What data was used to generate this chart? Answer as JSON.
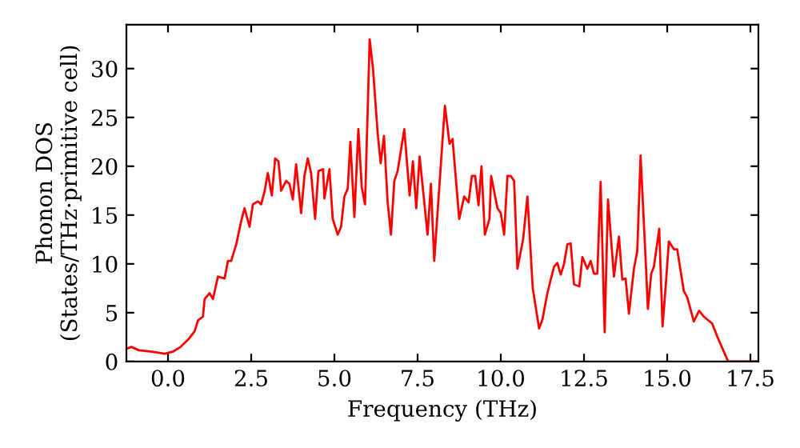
{
  "chart_data": {
    "type": "line",
    "xlabel": "Frequency (THz)",
    "ylabel": "Phonon DOS\n(States/THz·primitive cell)",
    "xlim": [
      -1.25,
      17.74
    ],
    "ylim": [
      0,
      34.5
    ],
    "xticks": [
      {
        "value": 0,
        "label": "0.0"
      },
      2.5,
      {
        "value": 5,
        "label": "5.0"
      },
      7.5,
      {
        "value": 10,
        "label": "10.0"
      },
      12.5,
      {
        "value": 15,
        "label": "15.0"
      },
      17.5
    ],
    "yticks": [
      0,
      5,
      10,
      15,
      20,
      25,
      30
    ],
    "grid": false,
    "legend": false,
    "marker": "none",
    "line_style": "solid",
    "series": [
      {
        "color": "#ff0000",
        "x": [
          -1.25,
          -1.1,
          -0.87,
          -0.48,
          -0.1,
          0.14,
          0.38,
          0.62,
          0.8,
          0.9,
          1.05,
          1.1,
          1.25,
          1.35,
          1.5,
          1.7,
          1.8,
          1.9,
          2.05,
          2.2,
          2.3,
          2.45,
          2.55,
          2.7,
          2.8,
          2.9,
          3.0,
          3.12,
          3.22,
          3.32,
          3.4,
          3.55,
          3.65,
          3.75,
          3.85,
          4.0,
          4.1,
          4.2,
          4.3,
          4.42,
          4.52,
          4.66,
          4.7,
          4.85,
          4.95,
          5.1,
          5.2,
          5.3,
          5.4,
          5.48,
          5.6,
          5.72,
          5.82,
          5.92,
          6.06,
          6.16,
          6.3,
          6.39,
          6.49,
          6.6,
          6.7,
          6.8,
          6.9,
          7.1,
          7.26,
          7.36,
          7.46,
          7.56,
          7.8,
          7.9,
          8.0,
          8.32,
          8.46,
          8.55,
          8.75,
          8.9,
          9.03,
          9.13,
          9.23,
          9.33,
          9.42,
          9.52,
          9.66,
          9.71,
          9.9,
          10.0,
          10.1,
          10.2,
          10.3,
          10.4,
          10.5,
          10.67,
          10.8,
          10.96,
          11.15,
          11.25,
          11.4,
          11.5,
          11.6,
          11.7,
          11.8,
          11.9,
          12.0,
          12.1,
          12.2,
          12.36,
          12.45,
          12.6,
          12.7,
          12.8,
          12.9,
          13.0,
          13.12,
          13.22,
          13.4,
          13.55,
          13.65,
          13.75,
          13.85,
          14.0,
          14.1,
          14.2,
          14.33,
          14.42,
          14.52,
          14.6,
          14.76,
          14.86,
          14.95,
          15.05,
          15.2,
          15.3,
          15.5,
          15.6,
          15.8,
          15.96,
          16.1,
          16.35,
          16.5,
          16.83,
          17.74
        ],
        "values": [
          1.3,
          1.5,
          1.15,
          1.0,
          0.8,
          1.0,
          1.5,
          2.3,
          3.1,
          4.2,
          4.6,
          6.4,
          7.0,
          6.4,
          8.7,
          8.5,
          10.3,
          10.3,
          12.0,
          14.4,
          15.7,
          13.8,
          16.1,
          16.4,
          16.1,
          17.4,
          19.3,
          17.0,
          20.8,
          20.5,
          17.5,
          18.5,
          18.2,
          16.6,
          20.2,
          15.2,
          19.0,
          20.8,
          19.3,
          14.6,
          19.5,
          19.7,
          16.7,
          19.7,
          14.6,
          13.0,
          13.8,
          16.9,
          17.7,
          22.5,
          14.8,
          23.8,
          17.9,
          16.1,
          33.0,
          30.0,
          23.4,
          20.3,
          23.1,
          16.3,
          13.0,
          18.5,
          19.5,
          23.8,
          17.0,
          20.5,
          15.7,
          21.0,
          13.0,
          18.2,
          10.3,
          26.2,
          22.3,
          22.8,
          14.6,
          16.9,
          16.3,
          19.0,
          19.0,
          16.0,
          20.0,
          13.0,
          14.6,
          19.0,
          15.7,
          15.2,
          13.0,
          19.0,
          19.0,
          18.5,
          9.5,
          12.5,
          16.9,
          7.5,
          3.4,
          4.3,
          7.0,
          8.4,
          9.7,
          10.1,
          8.9,
          10.0,
          12.0,
          12.1,
          7.9,
          7.7,
          10.7,
          9.5,
          10.3,
          9.0,
          9.0,
          18.4,
          3.0,
          16.6,
          8.7,
          12.8,
          8.4,
          8.5,
          4.9,
          9.5,
          11.3,
          21.1,
          12.0,
          5.4,
          9.0,
          9.7,
          13.6,
          3.6,
          7.5,
          12.3,
          11.5,
          11.5,
          7.2,
          6.6,
          4.1,
          5.2,
          4.6,
          3.9,
          2.6,
          0,
          0
        ]
      }
    ]
  }
}
